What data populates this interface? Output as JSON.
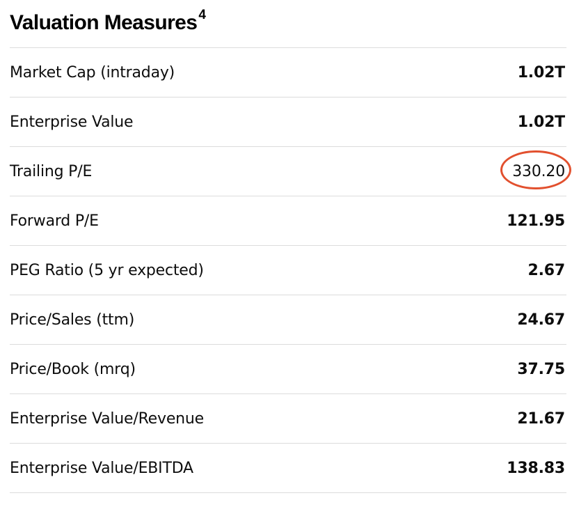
{
  "section": {
    "title": "Valuation Measures",
    "footnote": "4"
  },
  "rows": [
    {
      "label": "Market Cap (intraday)",
      "value": "1.02T"
    },
    {
      "label": "Enterprise Value",
      "value": "1.02T"
    },
    {
      "label": "Trailing P/E",
      "value": "330.20"
    },
    {
      "label": "Forward P/E",
      "value": "121.95"
    },
    {
      "label": "PEG Ratio (5 yr expected)",
      "value": "2.67"
    },
    {
      "label": "Price/Sales (ttm)",
      "value": "24.67"
    },
    {
      "label": "Price/Book (mrq)",
      "value": "37.75"
    },
    {
      "label": "Enterprise Value/Revenue",
      "value": "21.67"
    },
    {
      "label": "Enterprise Value/EBITDA",
      "value": "138.83"
    }
  ],
  "highlight": {
    "row_label": "Trailing P/E",
    "color": "#e2502e"
  }
}
